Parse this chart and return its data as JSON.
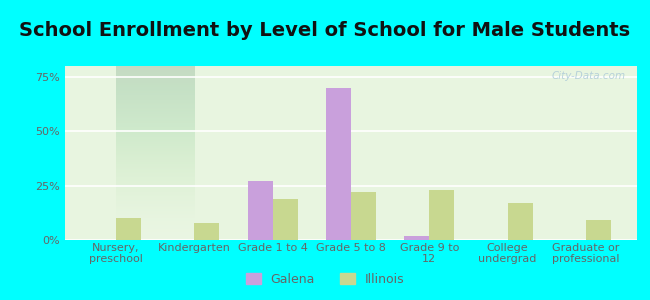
{
  "title": "School Enrollment by Level of School for Male Students",
  "categories": [
    "Nursery,\npreschool",
    "Kindergarten",
    "Grade 1 to 4",
    "Grade 5 to 8",
    "Grade 9 to\n12",
    "College\nundergrad",
    "Graduate or\nprofessional"
  ],
  "galena_values": [
    0,
    0,
    27,
    70,
    2,
    0,
    0
  ],
  "illinois_values": [
    10,
    8,
    19,
    22,
    23,
    17,
    9
  ],
  "galena_color": "#c9a0dc",
  "illinois_color": "#c8d890",
  "background_outer": "#00ffff",
  "background_inner": "#e8f5e0",
  "yticks": [
    0,
    25,
    50,
    75
  ],
  "ylim": [
    0,
    80
  ],
  "legend_galena": "Galena",
  "legend_illinois": "Illinois",
  "title_fontsize": 14,
  "tick_fontsize": 8.0,
  "legend_fontsize": 9,
  "title_color": "#111111",
  "tick_color": "#666666"
}
